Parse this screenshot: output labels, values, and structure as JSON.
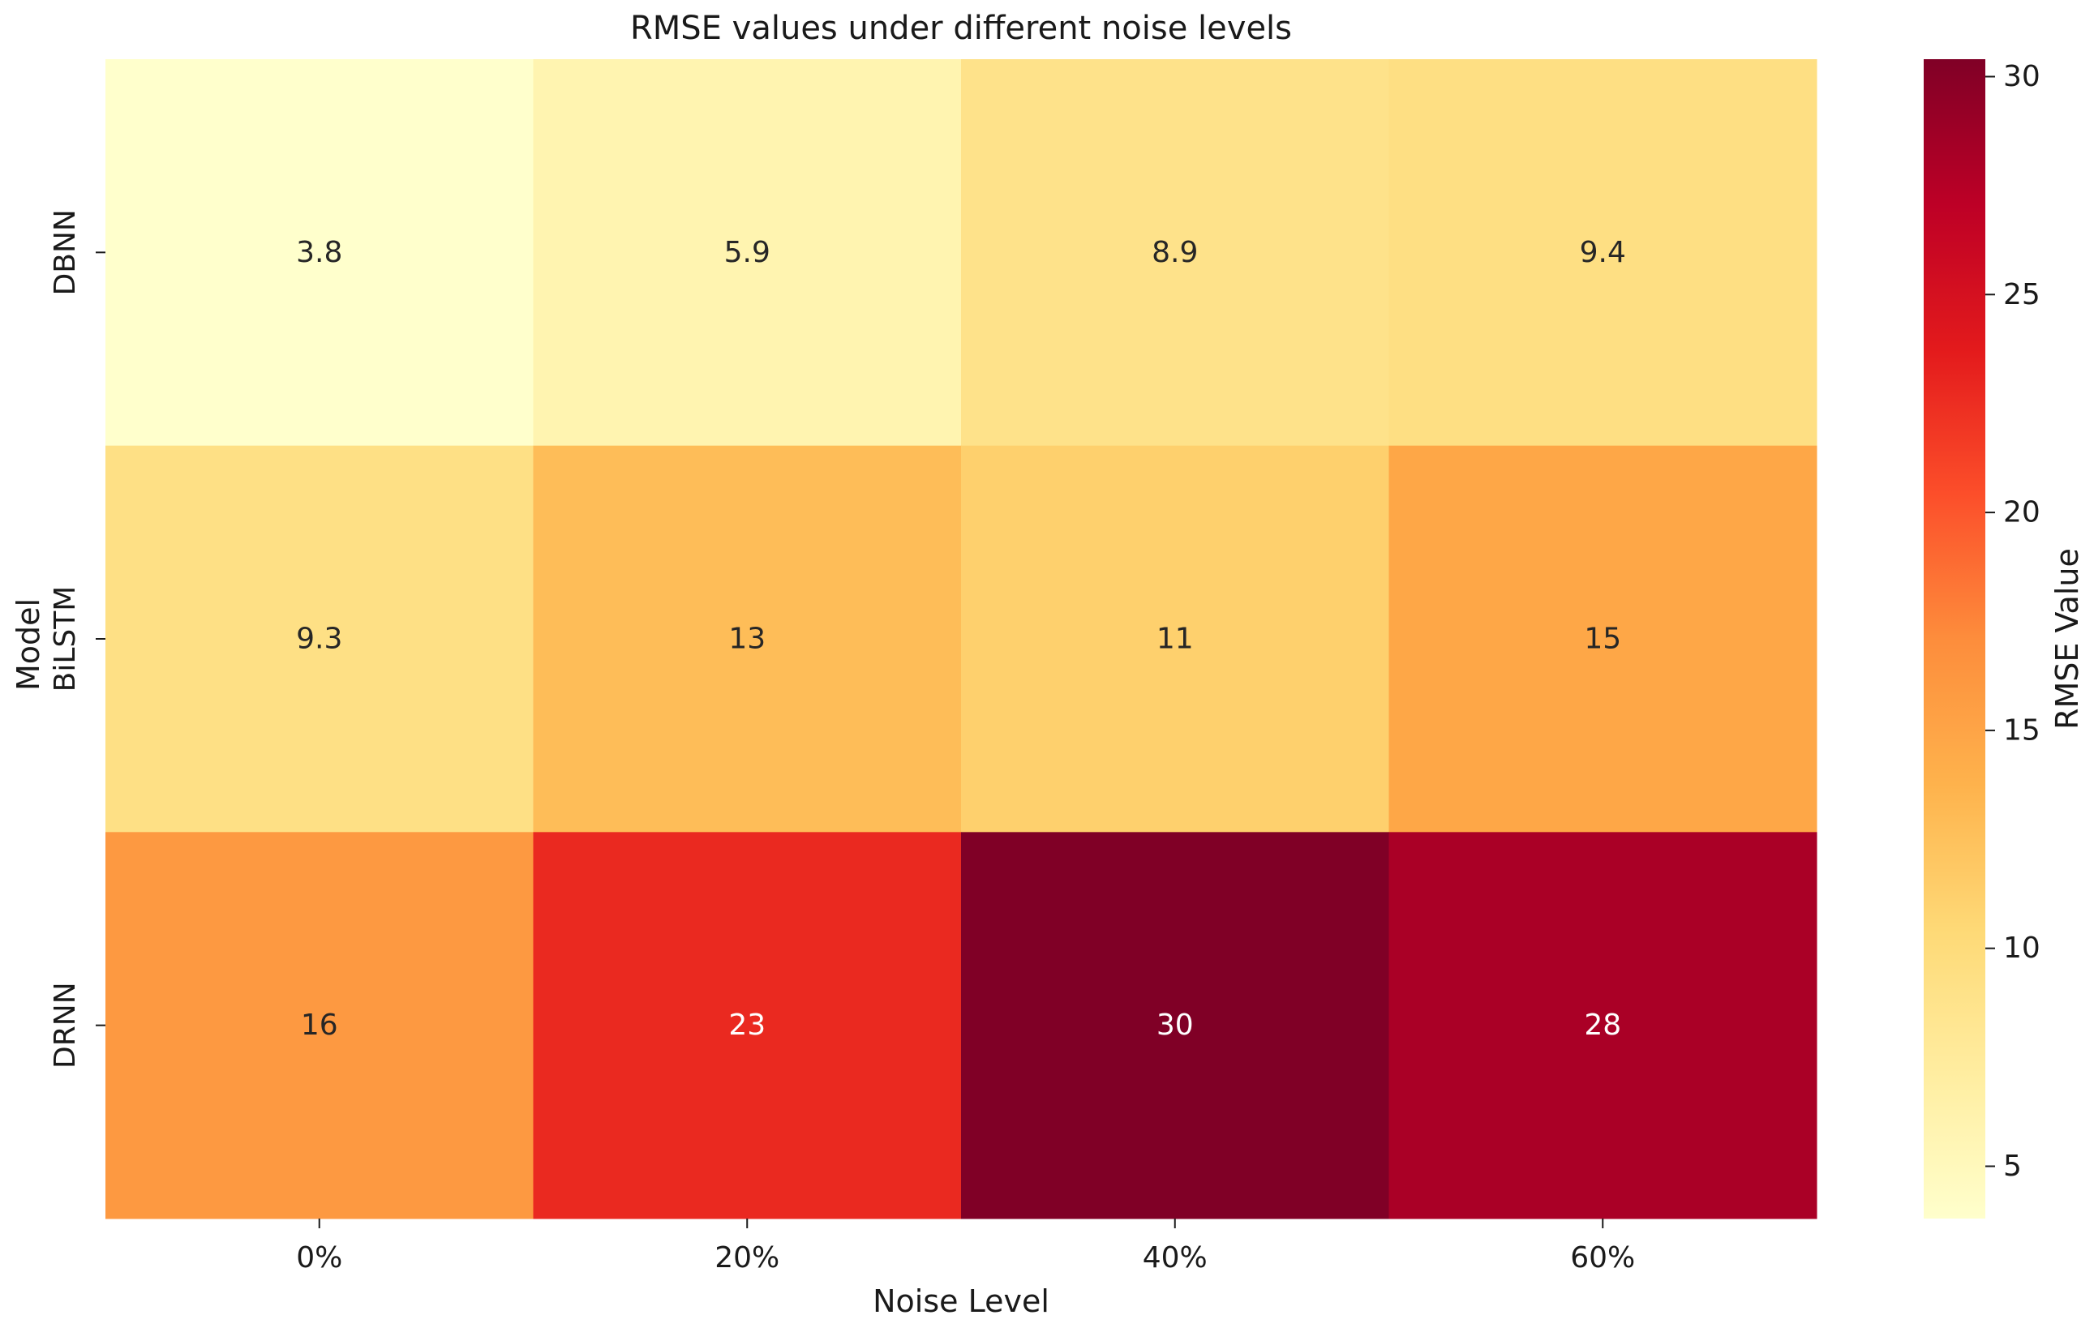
{
  "chart_data": {
    "type": "heatmap",
    "title": "RMSE values under different noise levels",
    "xlabel": "Noise Level",
    "ylabel": "Model",
    "x_categories": [
      "0%",
      "20%",
      "40%",
      "60%"
    ],
    "y_categories": [
      "DBNN",
      "BiLSTM",
      "DRNN"
    ],
    "values": [
      [
        3.8,
        5.9,
        8.9,
        9.4
      ],
      [
        9.3,
        12.8,
        11.2,
        14.8
      ],
      [
        16.0,
        22.8,
        30.4,
        28.1
      ]
    ],
    "annotations": [
      [
        "3.8",
        "5.9",
        "8.9",
        "9.4"
      ],
      [
        "9.3",
        "13",
        "11",
        "15"
      ],
      [
        "16",
        "23",
        "30",
        "28"
      ]
    ],
    "colormap": "YlOrRd",
    "vmin": 3.8,
    "vmax": 30.4,
    "colorbar": {
      "label": "RMSE Value",
      "ticks": [
        5,
        10,
        15,
        20,
        25,
        30
      ],
      "tick_labels": [
        "5",
        "10",
        "15",
        "20",
        "25",
        "30"
      ]
    }
  },
  "colors": {
    "scale": [
      "#ffffcc",
      "#ffeda0",
      "#fed976",
      "#feb24c",
      "#fd8d3c",
      "#fc4e2a",
      "#e31a1c",
      "#bd0026",
      "#800026"
    ],
    "dark_text": "#262626",
    "light_text": "#ffffff"
  }
}
